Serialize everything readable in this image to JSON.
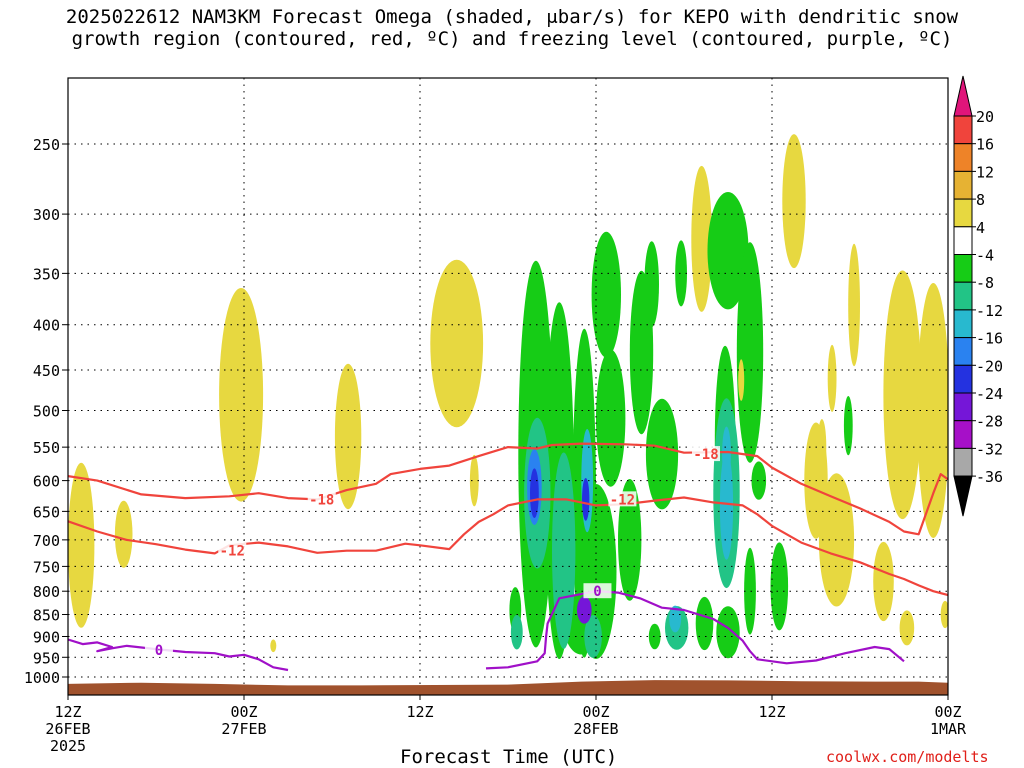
{
  "title": {
    "line1": "2025022612 NAM3KM Forecast Omega (shaded, μbar/s) for KEPO with dendritic snow",
    "line2": "growth region (contoured, red, ºC) and freezing level (contoured, purple, ºC)"
  },
  "x_axis_title": "Forecast Time (UTC)",
  "credit": "coolwx.com/modelts",
  "chart_data": {
    "type": "heatmap",
    "title": "2025022612 NAM3KM Forecast Omega (shaded, μbar/s) for KEPO with dendritic snow growth region (contoured, red, ºC) and freezing level (contoured, purple, ºC)",
    "xlabel": "Forecast Time (UTC)",
    "ylabel": "",
    "x_ticks": [
      {
        "hour": 0,
        "label1": "12Z",
        "label2": "26FEB",
        "label3": "2025"
      },
      {
        "hour": 12,
        "label1": "00Z",
        "label2": "27FEB",
        "label3": ""
      },
      {
        "hour": 24,
        "label1": "12Z",
        "label2": "",
        "label3": ""
      },
      {
        "hour": 36,
        "label1": "00Z",
        "label2": "28FEB",
        "label3": ""
      },
      {
        "hour": 48,
        "label1": "12Z",
        "label2": "",
        "label3": ""
      },
      {
        "hour": 60,
        "label1": "00Z",
        "label2": "1MAR",
        "label3": ""
      }
    ],
    "x_range_hours": [
      0,
      60
    ],
    "y_scale": "log-pressure",
    "y_range_hpa": [
      1040,
      200
    ],
    "y_ticks": [
      250,
      300,
      350,
      400,
      450,
      500,
      550,
      600,
      650,
      700,
      750,
      800,
      850,
      900,
      950,
      1000
    ],
    "grid": true,
    "colorbar": {
      "position": "right",
      "labels": [
        "20",
        "16",
        "12",
        "8",
        "4",
        "-4",
        "-8",
        "-12",
        "-16",
        "-20",
        "-24",
        "-28",
        "-32",
        "-36"
      ],
      "bands": [
        {
          "from": 16,
          "to": 20,
          "color": "#f0443c"
        },
        {
          "from": 12,
          "to": 16,
          "color": "#ee8328"
        },
        {
          "from": 8,
          "to": 12,
          "color": "#e6b233"
        },
        {
          "from": 4,
          "to": 8,
          "color": "#e7d840"
        },
        {
          "from": -4,
          "to": 4,
          "color": "#ffffff"
        },
        {
          "from": -8,
          "to": -4,
          "color": "#16cc16"
        },
        {
          "from": -12,
          "to": -8,
          "color": "#22c486"
        },
        {
          "from": -16,
          "to": -12,
          "color": "#28b9cf"
        },
        {
          "from": -20,
          "to": -16,
          "color": "#2a82f0"
        },
        {
          "from": -24,
          "to": -20,
          "color": "#2432e0"
        },
        {
          "from": -28,
          "to": -24,
          "color": "#7516d8"
        },
        {
          "from": -32,
          "to": -28,
          "color": "#a610c8"
        },
        {
          "from": -36,
          "to": -32,
          "color": "#a8a8a8"
        }
      ],
      "top_arrow_color": "#e0157a",
      "bottom_arrow_color": "#000000"
    },
    "series": [
      {
        "label": "-18",
        "kind": "isotherm",
        "color": "#f0443c",
        "points": [
          [
            0,
            593
          ],
          [
            2,
            600
          ],
          [
            5,
            622
          ],
          [
            8,
            628
          ],
          [
            11,
            625
          ],
          [
            13,
            620
          ],
          [
            15,
            628
          ],
          [
            17,
            630
          ],
          [
            19,
            615
          ],
          [
            21,
            605
          ],
          [
            22,
            590
          ],
          [
            24,
            582
          ],
          [
            26,
            577
          ],
          [
            28,
            563
          ],
          [
            30,
            550
          ],
          [
            32,
            552
          ],
          [
            33,
            547
          ],
          [
            35,
            545
          ],
          [
            38,
            546
          ],
          [
            40,
            548
          ],
          [
            42,
            558
          ],
          [
            45,
            557
          ],
          [
            47,
            563
          ],
          [
            48,
            580
          ],
          [
            50,
            605
          ],
          [
            52,
            625
          ],
          [
            54,
            645
          ],
          [
            56,
            668
          ],
          [
            57,
            685
          ],
          [
            58,
            690
          ],
          [
            59,
            620
          ],
          [
            59.5,
            590
          ],
          [
            60,
            598
          ]
        ]
      },
      {
        "label": "-12",
        "kind": "isotherm",
        "color": "#f0443c",
        "points": [
          [
            0,
            667
          ],
          [
            2,
            685
          ],
          [
            4,
            700
          ],
          [
            6,
            708
          ],
          [
            8,
            718
          ],
          [
            10,
            725
          ],
          [
            11,
            710
          ],
          [
            13,
            705
          ],
          [
            15,
            712
          ],
          [
            17,
            724
          ],
          [
            19,
            720
          ],
          [
            21,
            720
          ],
          [
            23,
            707
          ],
          [
            24,
            710
          ],
          [
            26,
            717
          ],
          [
            27,
            690
          ],
          [
            28,
            668
          ],
          [
            29,
            655
          ],
          [
            30,
            640
          ],
          [
            32,
            630
          ],
          [
            34,
            630
          ],
          [
            36,
            640
          ],
          [
            38,
            638
          ],
          [
            40,
            632
          ],
          [
            42,
            627
          ],
          [
            44,
            635
          ],
          [
            46,
            640
          ],
          [
            47,
            655
          ],
          [
            48,
            675
          ],
          [
            50,
            705
          ],
          [
            52,
            725
          ],
          [
            54,
            742
          ],
          [
            56,
            765
          ],
          [
            57,
            775
          ],
          [
            58,
            788
          ],
          [
            59,
            800
          ],
          [
            60,
            808
          ]
        ]
      },
      {
        "label": "0",
        "kind": "freezing-level",
        "color": "#a010c8",
        "points": [
          [
            0,
            907
          ],
          [
            1,
            918
          ],
          [
            2,
            914
          ],
          [
            3,
            925
          ],
          [
            2,
            935
          ],
          [
            3,
            928
          ],
          [
            4,
            922
          ],
          [
            6,
            930
          ],
          [
            8,
            937
          ],
          [
            10,
            940
          ],
          [
            11,
            948
          ],
          [
            12,
            944
          ],
          [
            13,
            955
          ],
          [
            14,
            975
          ],
          [
            15,
            982
          ]
        ]
      },
      {
        "label": "0",
        "kind": "freezing-level",
        "color": "#a010c8",
        "points": [
          [
            28.5,
            978
          ],
          [
            30,
            975
          ],
          [
            32,
            960
          ],
          [
            32.5,
            940
          ],
          [
            32.6,
            900
          ],
          [
            32.7,
            870
          ],
          [
            33.5,
            815
          ],
          [
            36,
            800
          ],
          [
            37.5,
            803
          ],
          [
            39,
            815
          ],
          [
            40.5,
            835
          ],
          [
            42,
            840
          ],
          [
            44,
            860
          ],
          [
            45,
            880
          ],
          [
            46,
            910
          ],
          [
            46.5,
            935
          ],
          [
            47,
            955
          ],
          [
            49,
            965
          ],
          [
            51,
            958
          ],
          [
            53,
            940
          ],
          [
            55,
            925
          ],
          [
            56,
            930
          ],
          [
            57,
            960
          ]
        ]
      },
      {
        "label": "",
        "kind": "omega-shaded",
        "color": "#e7d840",
        "points": []
      }
    ]
  }
}
